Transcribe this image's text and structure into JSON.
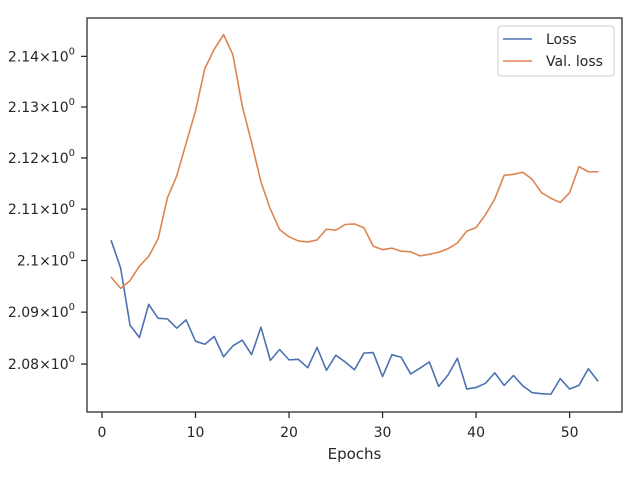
{
  "chart_data": {
    "type": "line",
    "xlabel": "Epochs",
    "ylabel": "",
    "xlim": [
      -1.6,
      55.6
    ],
    "ylim": [
      2.0708,
      2.1476
    ],
    "x_ticks": [
      0,
      10,
      20,
      30,
      40,
      50
    ],
    "y_ticks": [
      {
        "value": 2.08,
        "mantissa": "2.08",
        "exp": "0"
      },
      {
        "value": 2.09,
        "mantissa": "2.09",
        "exp": "0"
      },
      {
        "value": 2.1,
        "mantissa": "2.1",
        "exp": "0"
      },
      {
        "value": 2.11,
        "mantissa": "2.11",
        "exp": "0"
      },
      {
        "value": 2.12,
        "mantissa": "2.12",
        "exp": "0"
      },
      {
        "value": 2.13,
        "mantissa": "2.13",
        "exp": "0"
      },
      {
        "value": 2.14,
        "mantissa": "2.14",
        "exp": "0"
      }
    ],
    "y_scale": "log",
    "grid": false,
    "legend_position": "top-right",
    "x": [
      1,
      2,
      3,
      4,
      5,
      6,
      7,
      8,
      9,
      10,
      11,
      12,
      13,
      14,
      15,
      16,
      17,
      18,
      19,
      20,
      21,
      22,
      23,
      24,
      25,
      26,
      27,
      28,
      29,
      30,
      31,
      32,
      33,
      34,
      35,
      36,
      37,
      38,
      39,
      40,
      41,
      42,
      43,
      44,
      45,
      46,
      47,
      48,
      49,
      50,
      51,
      52,
      53
    ],
    "series": [
      {
        "name": "Loss",
        "color": "#4c72b0",
        "values": [
          2.1038,
          2.0985,
          2.0875,
          2.0851,
          2.0915,
          2.0888,
          2.0887,
          2.0869,
          2.0885,
          2.0844,
          2.0838,
          2.0853,
          2.0814,
          2.0835,
          2.0846,
          2.0818,
          2.0871,
          2.0807,
          2.0828,
          2.0808,
          2.0809,
          2.0793,
          2.0832,
          2.0788,
          2.0817,
          2.0804,
          2.0789,
          2.0821,
          2.0822,
          2.0776,
          2.0818,
          2.0813,
          2.0781,
          2.0792,
          2.0804,
          2.0757,
          2.0779,
          2.0811,
          2.0752,
          2.0755,
          2.0763,
          2.0783,
          2.0759,
          2.0778,
          2.0758,
          2.0745,
          2.0743,
          2.0742,
          2.0772,
          2.0752,
          2.0759,
          2.0791,
          2.0768
        ]
      },
      {
        "name": "Val. loss",
        "color": "#dd8452",
        "values": [
          2.0967,
          2.0946,
          2.0961,
          2.0989,
          2.1008,
          2.1042,
          2.1122,
          2.1165,
          2.1229,
          2.1292,
          2.1376,
          2.1414,
          2.1443,
          2.1403,
          2.1302,
          2.123,
          2.1153,
          2.11,
          2.106,
          2.1046,
          2.1038,
          2.1036,
          2.104,
          2.1061,
          2.1059,
          2.107,
          2.1071,
          2.1064,
          2.1028,
          2.1021,
          2.1024,
          2.1018,
          2.1017,
          2.1009,
          2.1012,
          2.1016,
          2.1023,
          2.1034,
          2.1057,
          2.1064,
          2.1089,
          2.112,
          2.1166,
          2.1168,
          2.1172,
          2.1158,
          2.1132,
          2.1121,
          2.1113,
          2.1132,
          2.1183,
          2.1173,
          2.1173
        ]
      }
    ]
  }
}
